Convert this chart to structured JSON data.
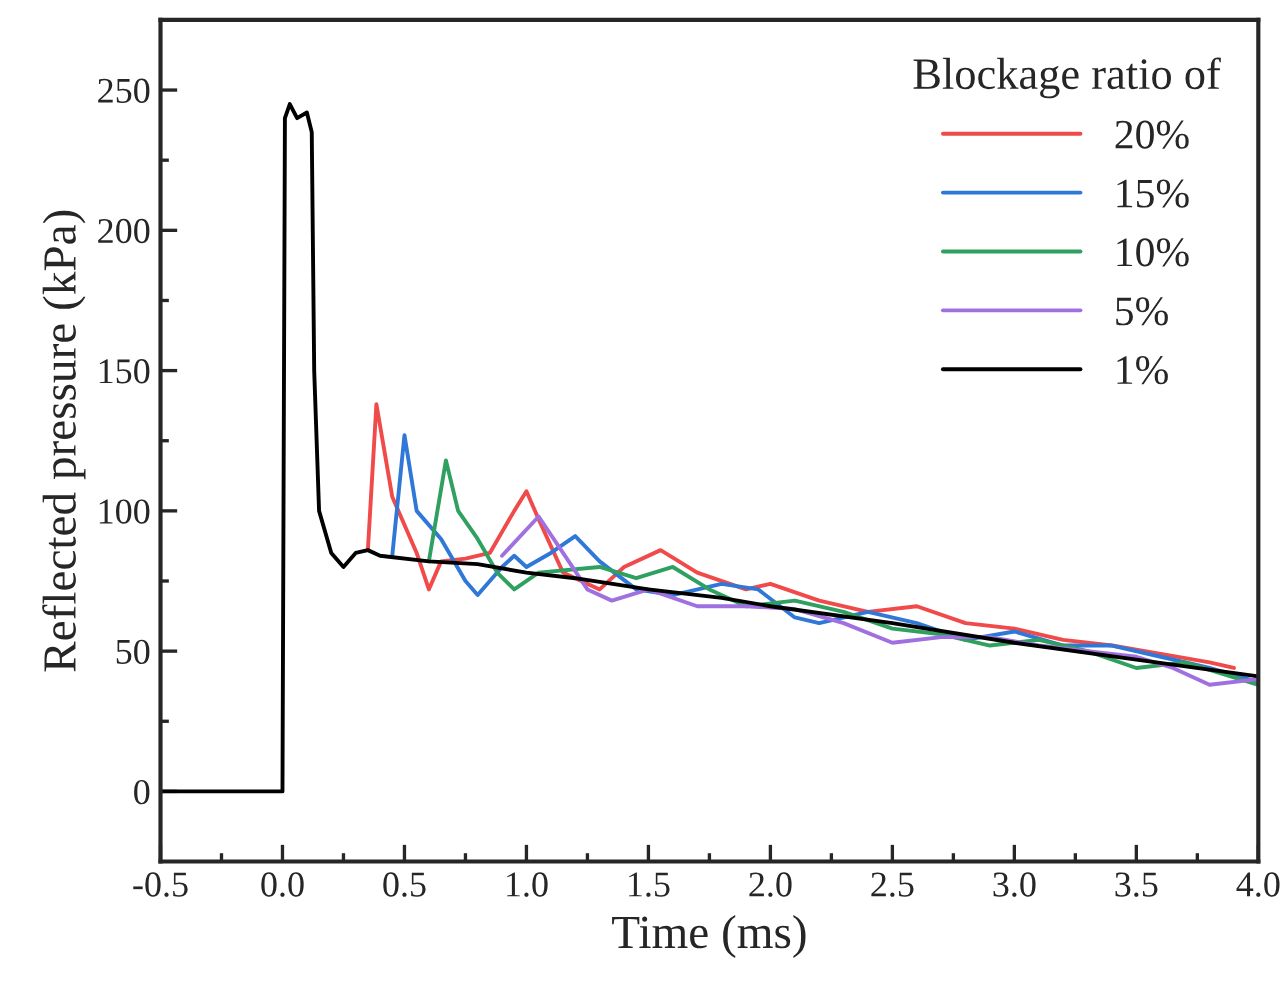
{
  "chart_data": {
    "type": "line",
    "xlabel": "Time (ms)",
    "ylabel": "Reflected pressure (kPa)",
    "legend_title": "Blockage ratio of",
    "legend": "top right",
    "grid": false,
    "marker": "none",
    "line_style": "solid",
    "xlim": [
      -0.5,
      4.0
    ],
    "xticks": [
      {
        "value": -0.5,
        "label": "-0.5"
      },
      {
        "value": 0,
        "label": "0.0"
      },
      0.5,
      {
        "value": 1,
        "label": "1.0"
      },
      1.5,
      {
        "value": 2,
        "label": "2.0"
      },
      2.5,
      {
        "value": 3,
        "label": "3.0"
      },
      3.5,
      {
        "value": 4,
        "label": "4.0"
      }
    ],
    "ylim": [
      -25,
      275
    ],
    "yticks": [
      0,
      50,
      100,
      150,
      200,
      250
    ],
    "series": [
      {
        "name": "20%",
        "color": "#f04a4a",
        "x": [
          0.35,
          0.385,
          0.45,
          0.55,
          0.6,
          0.65,
          0.75,
          0.85,
          0.95,
          1.0,
          1.05,
          1.15,
          1.3,
          1.4,
          1.55,
          1.7,
          1.9,
          2.0,
          2.2,
          2.4,
          2.6,
          2.8,
          3.0,
          3.2,
          3.4,
          3.6,
          3.8,
          3.9
        ],
        "values": [
          86,
          138,
          105,
          85,
          72,
          82,
          83,
          85,
          100,
          107,
          97,
          78,
          72,
          80,
          86,
          78,
          72,
          74,
          68,
          64,
          66,
          60,
          58,
          54,
          52,
          49,
          46,
          44
        ]
      },
      {
        "name": "15%",
        "color": "#2f78d8",
        "x": [
          0.45,
          0.5,
          0.55,
          0.65,
          0.75,
          0.8,
          0.9,
          0.95,
          1.0,
          1.1,
          1.2,
          1.3,
          1.45,
          1.6,
          1.8,
          1.95,
          2.1,
          2.2,
          2.4,
          2.6,
          2.8,
          3.0,
          3.2,
          3.4,
          3.6,
          3.8,
          4.0
        ],
        "values": [
          84,
          127,
          100,
          90,
          75,
          70,
          80,
          84,
          80,
          85,
          91,
          82,
          72,
          70,
          74,
          72,
          62,
          60,
          64,
          60,
          54,
          57,
          52,
          52,
          48,
          44,
          39
        ]
      },
      {
        "name": "10%",
        "color": "#30a060",
        "x": [
          0.6,
          0.67,
          0.72,
          0.8,
          0.88,
          0.95,
          1.05,
          1.3,
          1.45,
          1.6,
          1.75,
          1.9,
          2.1,
          2.3,
          2.5,
          2.7,
          2.9,
          3.1,
          3.3,
          3.5,
          3.7,
          4.0
        ],
        "values": [
          82,
          118,
          100,
          90,
          78,
          72,
          78,
          80,
          76,
          80,
          72,
          66,
          68,
          64,
          58,
          56,
          52,
          54,
          50,
          44,
          46,
          38
        ]
      },
      {
        "name": "5%",
        "color": "#a070e0",
        "x": [
          0.9,
          1.05,
          1.15,
          1.25,
          1.35,
          1.5,
          1.7,
          1.9,
          2.1,
          2.3,
          2.5,
          2.7,
          2.9,
          3.1,
          3.3,
          3.5,
          3.65,
          3.8,
          4.0
        ],
        "values": [
          84,
          98,
          85,
          72,
          68,
          72,
          66,
          66,
          65,
          60,
          53,
          55,
          55,
          52,
          50,
          48,
          44,
          38,
          40
        ]
      },
      {
        "name": "1%",
        "color": "#000000",
        "x": [
          -0.5,
          0,
          0.01,
          0.03,
          0.06,
          0.1,
          0.12,
          0.13,
          0.15,
          0.2,
          0.25,
          0.3,
          0.35,
          0.4,
          0.6,
          0.8,
          1.0,
          1.2,
          1.5,
          1.8,
          2.0,
          2.5,
          3.0,
          3.5,
          4.0
        ],
        "values": [
          0,
          0,
          240,
          245,
          240,
          242,
          235,
          150,
          100,
          85,
          80,
          85,
          86,
          84,
          82,
          81,
          78,
          76,
          72,
          69,
          66,
          60,
          53,
          47,
          41
        ]
      }
    ]
  }
}
